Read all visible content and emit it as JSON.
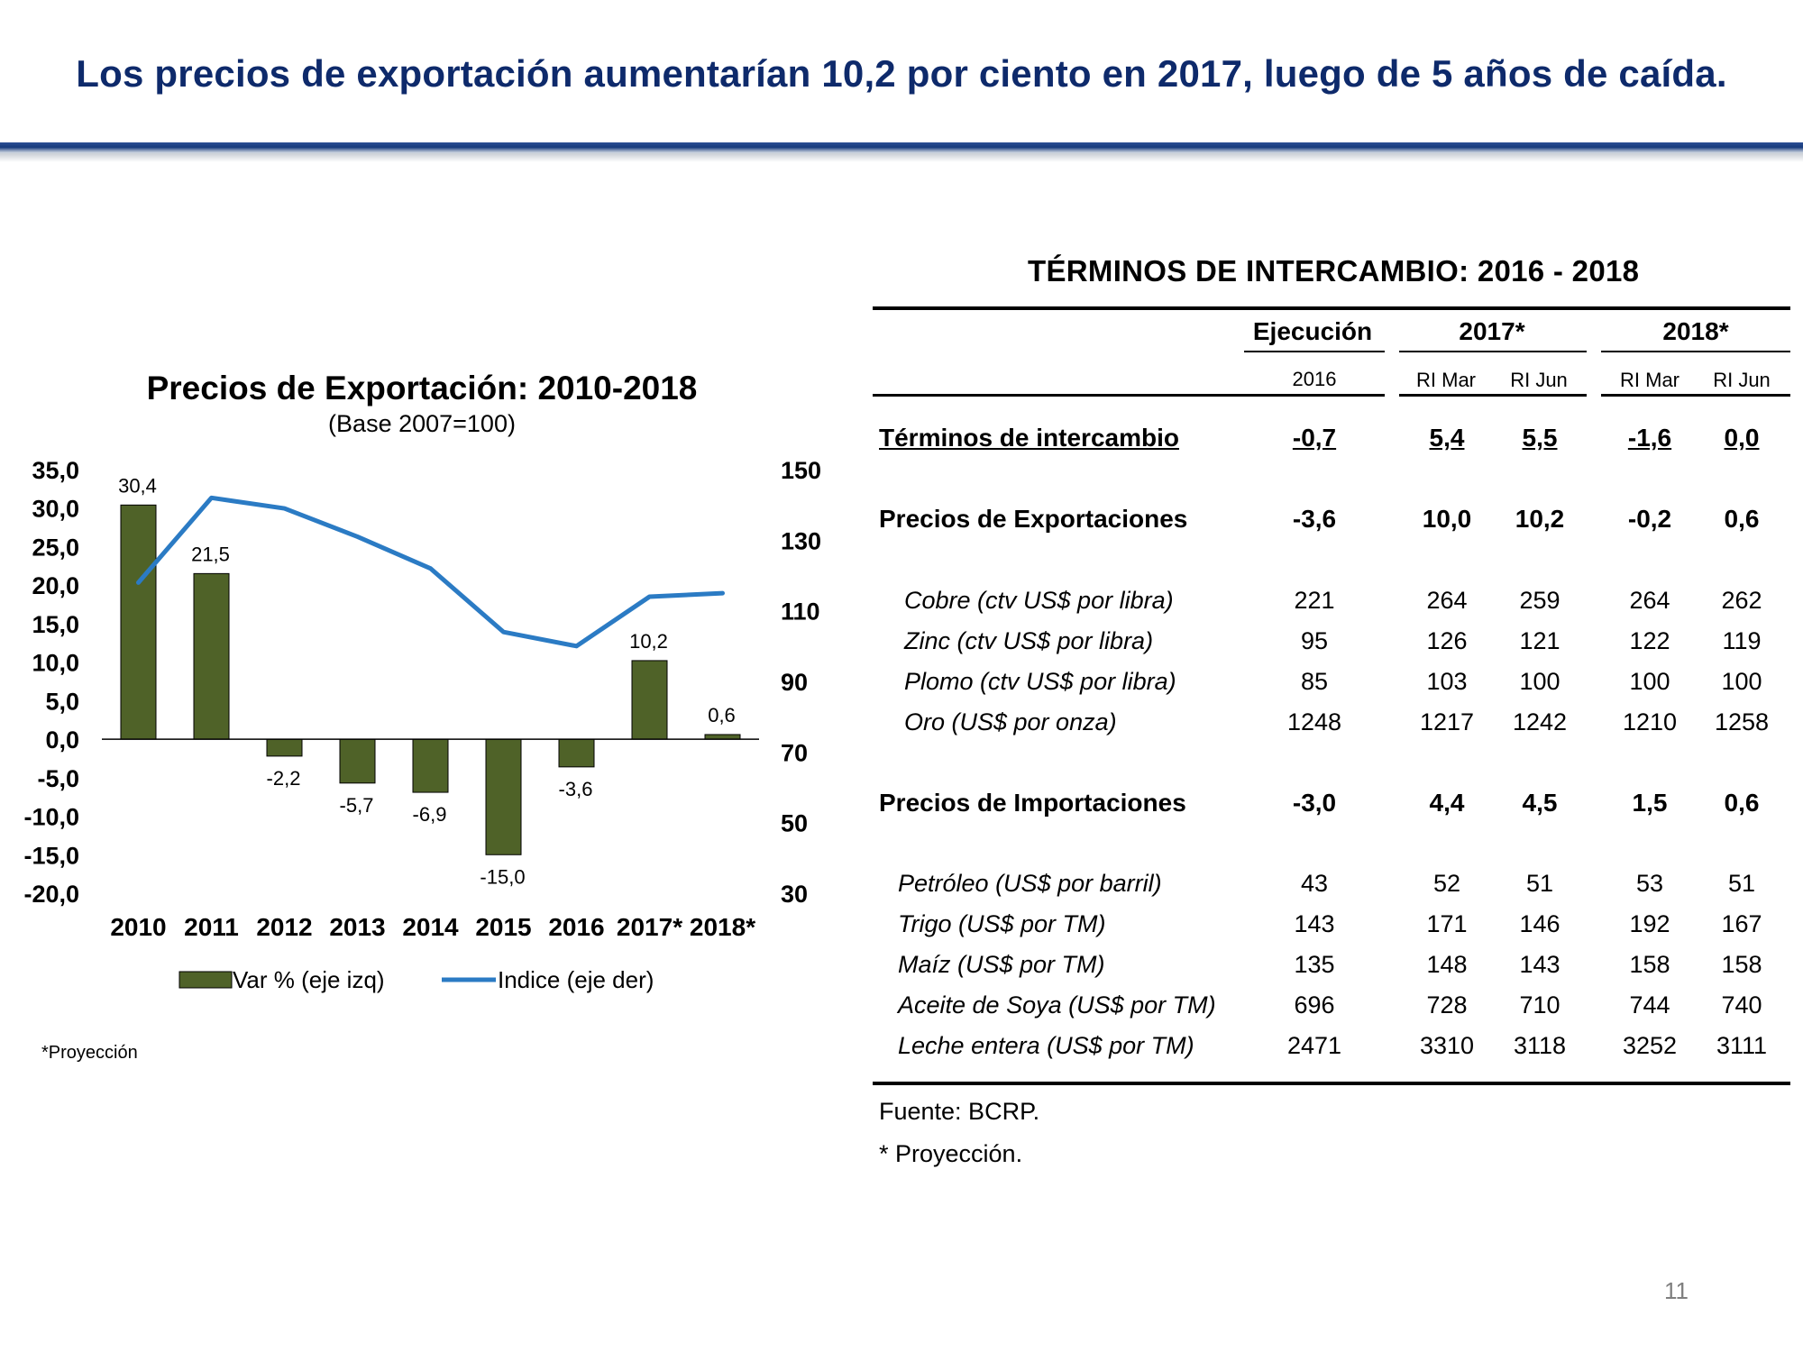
{
  "slide": {
    "title": "Los precios de exportación aumentarían 10,2 por ciento en 2017, luego de 5 años de caída.",
    "page_number": "11"
  },
  "chart_data": {
    "type": "bar+line",
    "title": "Precios de Exportación: 2010-2018",
    "subtitle": "(Base 2007=100)",
    "categories": [
      "2010",
      "2011",
      "2012",
      "2013",
      "2014",
      "2015",
      "2016",
      "2017*",
      "2018*"
    ],
    "series": [
      {
        "name": "Var % (eje izq)",
        "type": "bar",
        "axis": "left",
        "color": "#4f6228",
        "values": [
          30.4,
          21.5,
          -2.2,
          -5.7,
          -6.9,
          -15.0,
          -3.6,
          10.2,
          0.6
        ],
        "labels": [
          "30,4",
          "21,5",
          "-2,2",
          "-5,7",
          "-6,9",
          "-15,0",
          "-3,6",
          "10,2",
          "0,6"
        ]
      },
      {
        "name": "Indice (eje der)",
        "type": "line",
        "axis": "right",
        "color": "#2b7bc4",
        "values": [
          118,
          142,
          139,
          131,
          122,
          104,
          100,
          114,
          115
        ]
      }
    ],
    "y_left": {
      "range": [
        -20,
        35
      ],
      "ticks": [
        "35,0",
        "30,0",
        "25,0",
        "20,0",
        "15,0",
        "10,0",
        "5,0",
        "0,0",
        "-5,0",
        "-10,0",
        "-15,0",
        "-20,0"
      ],
      "tick_values": [
        35,
        30,
        25,
        20,
        15,
        10,
        5,
        0,
        -5,
        -10,
        -15,
        -20
      ]
    },
    "y_right": {
      "range": [
        30,
        150
      ],
      "ticks": [
        "150",
        "130",
        "110",
        "90",
        "70",
        "50",
        "30"
      ],
      "tick_values": [
        150,
        130,
        110,
        90,
        70,
        50,
        30
      ]
    },
    "footnote": "*Proyección"
  },
  "table": {
    "title": "TÉRMINOS DE INTERCAMBIO: 2016 - 2018",
    "groups": [
      {
        "label": "Ejecución",
        "sub": [
          "2016"
        ]
      },
      {
        "label": "2017*",
        "sub": [
          "RI Mar",
          "RI Jun"
        ]
      },
      {
        "label": "2018*",
        "sub": [
          "RI Mar",
          "RI Jun"
        ]
      }
    ],
    "rows": [
      {
        "label": "Términos de intercambio",
        "values": [
          "-0,7",
          "5,4",
          "5,5",
          "-1,6",
          "0,0"
        ]
      },
      {
        "label": "Precios de Exportaciones",
        "values": [
          "-3,6",
          "10,0",
          "10,2",
          "-0,2",
          "0,6"
        ]
      },
      {
        "label": "Cobre (ctv US$ por libra)",
        "values": [
          "221",
          "264",
          "259",
          "264",
          "262"
        ]
      },
      {
        "label": "Zinc (ctv US$ por libra)",
        "values": [
          "95",
          "126",
          "121",
          "122",
          "119"
        ]
      },
      {
        "label": "Plomo (ctv US$ por libra)",
        "values": [
          "85",
          "103",
          "100",
          "100",
          "100"
        ]
      },
      {
        "label": "Oro (US$ por onza)",
        "values": [
          "1248",
          "1217",
          "1242",
          "1210",
          "1258"
        ]
      },
      {
        "label": "Precios de Importaciones",
        "values": [
          "-3,0",
          "4,4",
          "4,5",
          "1,5",
          "0,6"
        ]
      },
      {
        "label": "Petróleo (US$ por barril)",
        "values": [
          "43",
          "52",
          "51",
          "53",
          "51"
        ]
      },
      {
        "label": "Trigo (US$ por TM)",
        "values": [
          "143",
          "171",
          "146",
          "192",
          "167"
        ]
      },
      {
        "label": "Maíz (US$ por TM)",
        "values": [
          "135",
          "148",
          "143",
          "158",
          "158"
        ]
      },
      {
        "label": "Aceite de Soya (US$ por TM)",
        "values": [
          "696",
          "728",
          "710",
          "744",
          "740"
        ]
      },
      {
        "label": "Leche entera (US$ por TM)",
        "values": [
          "2471",
          "3310",
          "3118",
          "3252",
          "3111"
        ]
      }
    ],
    "source": "Fuente: BCRP.",
    "note": "* Proyección."
  }
}
